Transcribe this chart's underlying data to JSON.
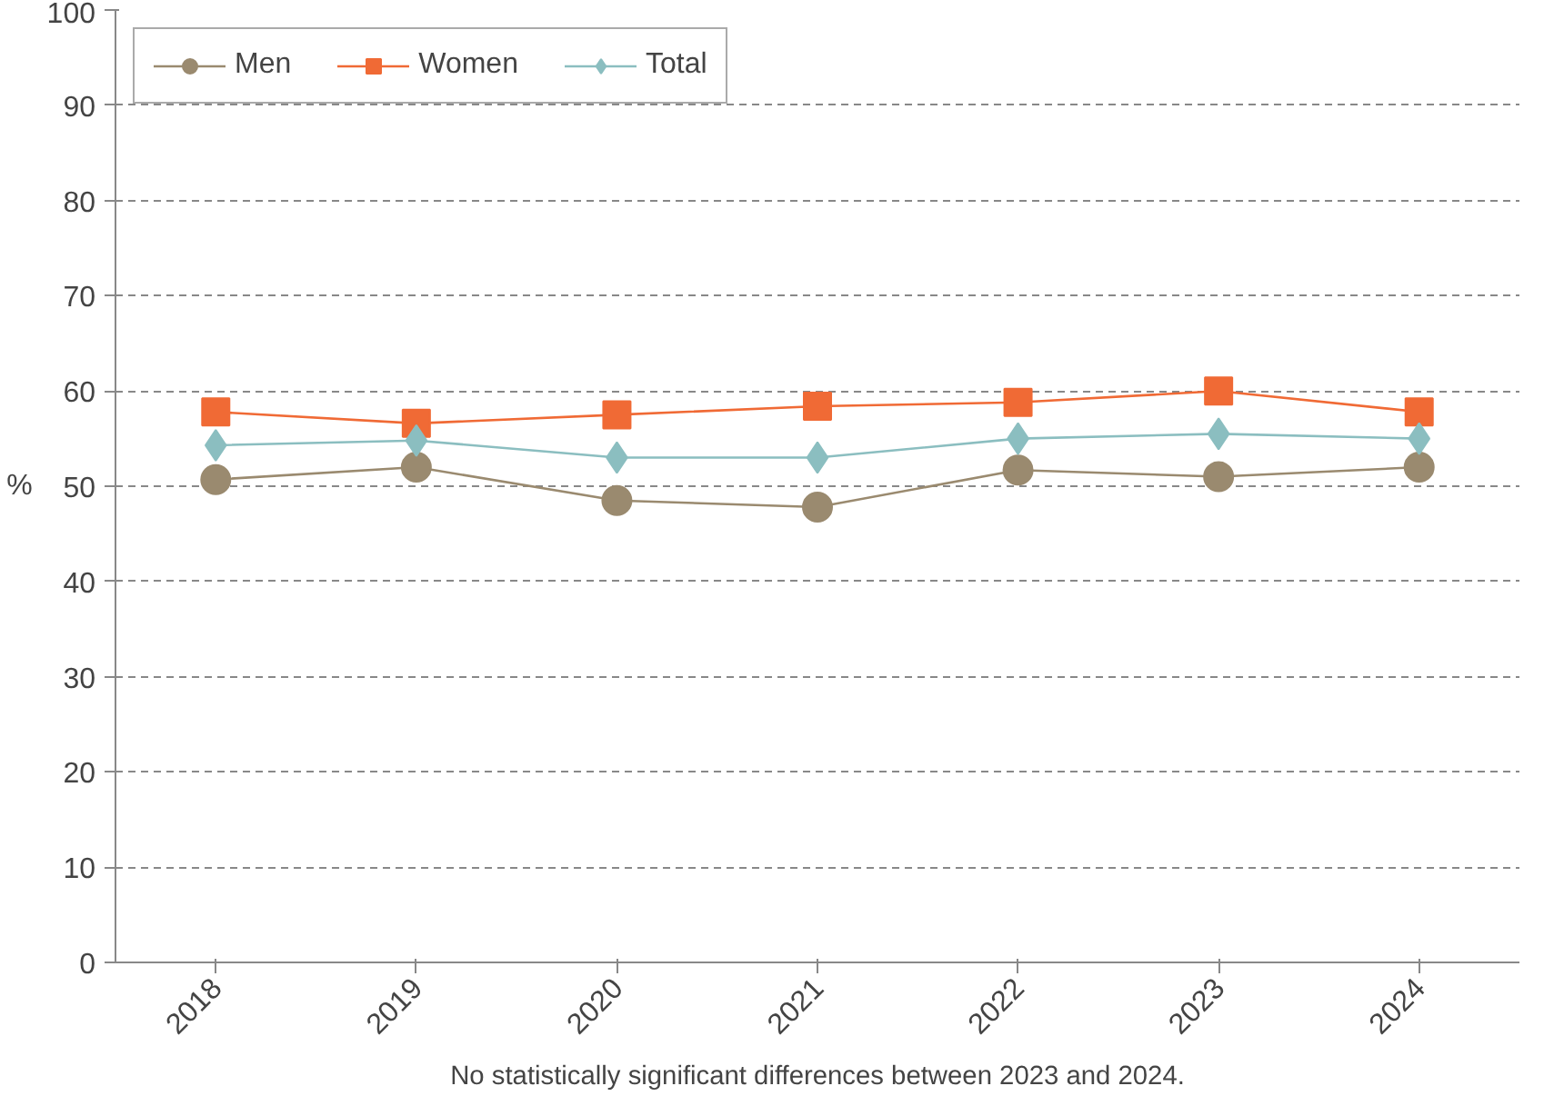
{
  "chart_data": {
    "type": "line",
    "ylabel": "%",
    "categories": [
      "2018",
      "2019",
      "2020",
      "2021",
      "2022",
      "2023",
      "2024"
    ],
    "series": [
      {
        "name": "Men",
        "color": "#9a8a6f",
        "marker": "circle",
        "values": [
          50.7,
          52.0,
          48.5,
          47.8,
          51.7,
          51.0,
          52.0
        ]
      },
      {
        "name": "Women",
        "color": "#f06a35",
        "marker": "square",
        "values": [
          57.8,
          56.6,
          57.5,
          58.4,
          58.8,
          60.0,
          57.8
        ]
      },
      {
        "name": "Total",
        "color": "#8bbec0",
        "marker": "diamond",
        "values": [
          54.3,
          54.8,
          53.0,
          53.0,
          55.0,
          55.5,
          55.0
        ]
      }
    ],
    "ylim": [
      0,
      100
    ],
    "yticks": [
      0,
      10,
      20,
      30,
      40,
      50,
      60,
      70,
      80,
      90,
      100
    ],
    "grid": "y",
    "legend": "top left",
    "annotations": [
      "No statistically significant differences between 2023 and 2024."
    ]
  }
}
